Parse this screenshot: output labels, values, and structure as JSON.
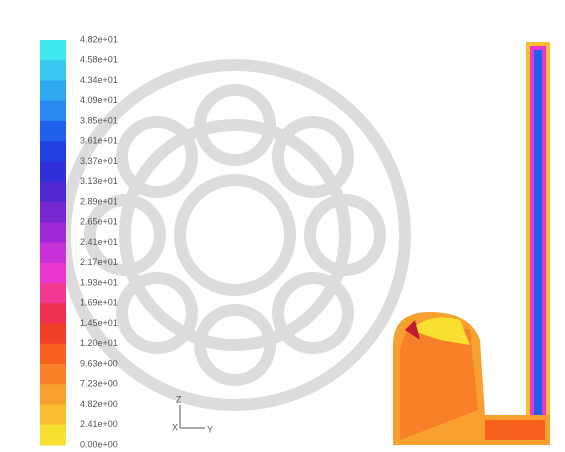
{
  "colorbar": {
    "labels": [
      "4.82e+01",
      "4.58e+01",
      "4.34e+01",
      "4.09e+01",
      "3.85e+01",
      "3.61e+01",
      "3.37e+01",
      "3.13e+01",
      "2.89e+01",
      "2.65e+01",
      "2.41e+01",
      "2.17e+01",
      "1.93e+01",
      "1.69e+01",
      "1.45e+01",
      "1.20e+01",
      "9.63e+00",
      "7.23e+00",
      "4.82e+00",
      "2.41e+00",
      "0.00e+00"
    ],
    "colors": [
      "#40e8f0",
      "#38c8f0",
      "#30a8f0",
      "#2888f0",
      "#2060e8",
      "#2040e0",
      "#3030d8",
      "#5028d0",
      "#7828d0",
      "#a028d8",
      "#c830d8",
      "#e838d0",
      "#f03890",
      "#f03050",
      "#f04028",
      "#f86020",
      "#f88028",
      "#f8a030",
      "#f8c030",
      "#f8e030"
    ]
  },
  "axes": {
    "z": "Z",
    "x": "X",
    "y": "Y"
  }
}
